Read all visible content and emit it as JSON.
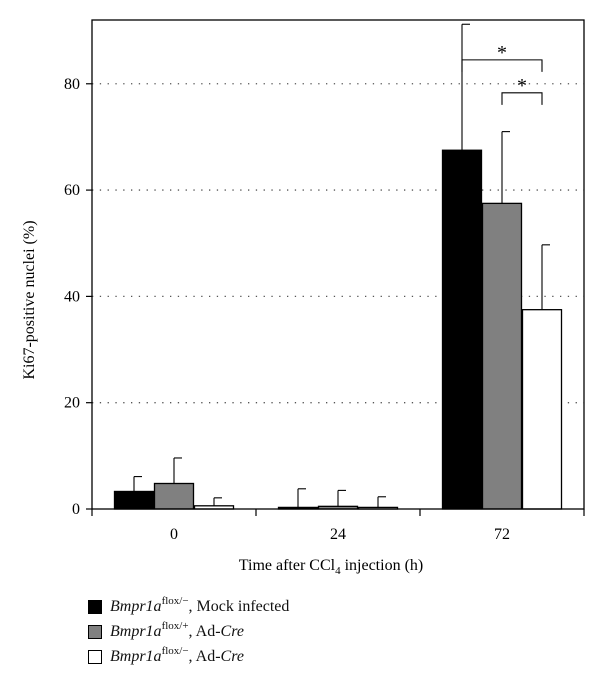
{
  "chart_data": {
    "type": "bar",
    "categories": [
      "0",
      "24",
      "72"
    ],
    "xlabel_prefix": "Time after CCl",
    "xlabel_sub": "4",
    "xlabel_suffix": " injection (h)",
    "ylabel": "Ki67-positive nuclei (%)",
    "yticks": [
      "0",
      "20",
      "40",
      "60",
      "80"
    ],
    "ylim": [
      0,
      92
    ],
    "grid": "dotted horizontal",
    "series": [
      {
        "gene": "Bmpr1a",
        "sup": "flox/−",
        "label_rest": ", Mock infected",
        "cre": "",
        "color": "#000000",
        "values": [
          3.3,
          0.3,
          67.5
        ],
        "errors": [
          2.8,
          3.5,
          23.7
        ]
      },
      {
        "gene": "Bmpr1a",
        "sup": "flox/+",
        "label_rest": ", Ad-",
        "cre": "Cre",
        "color": "#808080",
        "values": [
          4.8,
          0.5,
          57.5
        ],
        "errors": [
          4.8,
          3.0,
          13.5
        ]
      },
      {
        "gene": "Bmpr1a",
        "sup": "flox/−",
        "label_rest": ", Ad-",
        "cre": "Cre",
        "color": "#ffffff",
        "values": [
          0.6,
          0.3,
          37.5
        ],
        "errors": [
          1.5,
          2.0,
          12.2
        ]
      }
    ],
    "significance": [
      {
        "category": 2,
        "from_series": 0,
        "to_series": 2,
        "y": 84.5,
        "label": "*"
      },
      {
        "category": 2,
        "from_series": 1,
        "to_series": 2,
        "y": 78.3,
        "label": "*"
      }
    ]
  }
}
